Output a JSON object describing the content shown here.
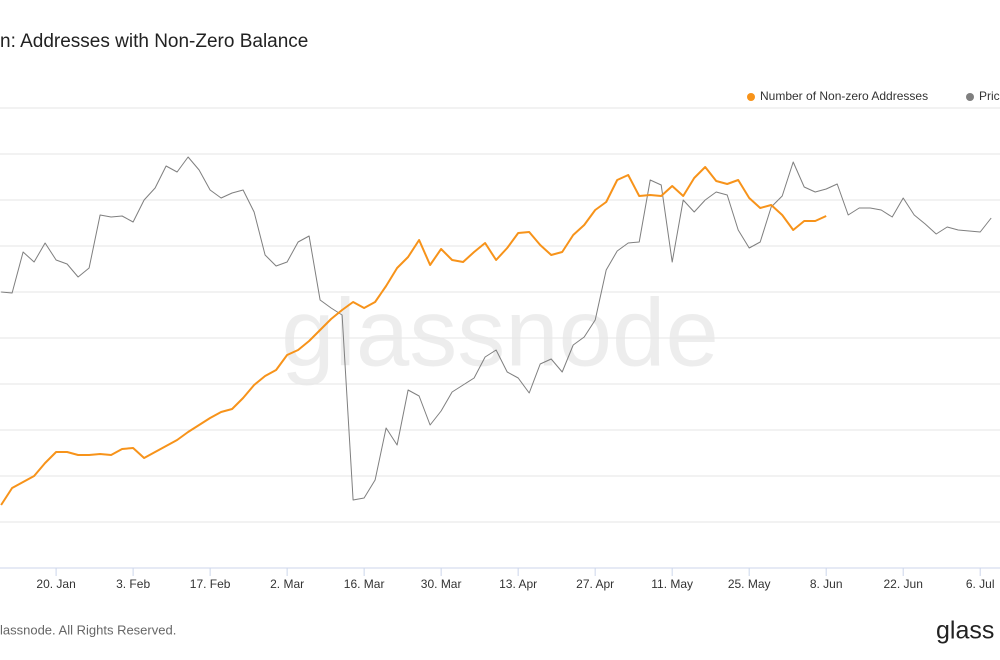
{
  "chart_data": {
    "type": "line",
    "title": "n: Addresses with Non-Zero Balance",
    "footer": "lassnode. All Rights Reserved.",
    "logo": "glass",
    "watermark": "glassnode",
    "xlim": [
      9.8,
      191.6
    ],
    "xticks": [
      {
        "value": 20,
        "label": "20. Jan"
      },
      {
        "value": 34,
        "label": "3. Feb"
      },
      {
        "value": 48,
        "label": "17. Feb"
      },
      {
        "value": 62,
        "label": "2. Mar"
      },
      {
        "value": 76,
        "label": "16. Mar"
      },
      {
        "value": 90,
        "label": "30. Mar"
      },
      {
        "value": 104,
        "label": "13. Apr"
      },
      {
        "value": 118,
        "label": "27. Apr"
      },
      {
        "value": 132,
        "label": "11. May"
      },
      {
        "value": 146,
        "label": "25. May"
      },
      {
        "value": 160,
        "label": "8. Jun"
      },
      {
        "value": 174,
        "label": "22. Jun"
      },
      {
        "value": 188,
        "label": "6. Jul"
      }
    ],
    "ylim": [
      0,
      490
    ],
    "yticks": [
      46,
      92,
      138,
      184,
      230,
      276,
      322,
      368,
      414,
      460
    ],
    "grid": true,
    "legend": "top-right",
    "x": [
      10,
      12,
      14,
      16,
      18,
      20,
      22,
      24,
      26,
      28,
      30,
      32,
      34,
      36,
      38,
      40,
      42,
      44,
      46,
      48,
      50,
      52,
      54,
      56,
      58,
      60,
      62,
      64,
      66,
      68,
      70,
      72,
      74,
      76,
      78,
      80,
      82,
      84,
      86,
      88,
      90,
      92,
      94,
      96,
      98,
      100,
      102,
      104,
      106,
      108,
      110,
      112,
      114,
      116,
      118,
      120,
      122,
      124,
      126,
      128,
      130,
      132,
      134,
      136,
      138,
      140,
      142,
      144,
      146,
      148,
      150,
      152,
      154,
      156,
      158,
      160,
      162,
      164,
      166,
      168,
      170,
      172,
      174,
      176,
      178,
      180,
      182,
      184,
      186,
      188,
      190
    ],
    "series": [
      {
        "name": "Number of Non-zero Addresses",
        "color": "#f7931a",
        "values": [
          63,
          80,
          86,
          92,
          105,
          116,
          116,
          113,
          113,
          114,
          113,
          119,
          120,
          110,
          116,
          122,
          128,
          136,
          143,
          150,
          156,
          159,
          170,
          183,
          192,
          198,
          213,
          218,
          227,
          238,
          249,
          258,
          266,
          260,
          266,
          282,
          300,
          311,
          328,
          303,
          319,
          308,
          306,
          316,
          325,
          308,
          320,
          335,
          336,
          323,
          313,
          316,
          333,
          343,
          358,
          366,
          388,
          393,
          372,
          373,
          372,
          382,
          372,
          390,
          401,
          387,
          384,
          388,
          370,
          360,
          363,
          353,
          338,
          347,
          347,
          352,
          null,
          null,
          null,
          null,
          null,
          null,
          null,
          null,
          null,
          null,
          null,
          null,
          null,
          null,
          null
        ]
      },
      {
        "name": "Pric",
        "color": "#7f7f7f",
        "values": [
          276,
          275,
          316,
          306,
          325,
          308,
          304,
          291,
          300,
          353,
          351,
          352,
          346,
          368,
          380,
          402,
          396,
          411,
          398,
          378,
          370,
          375,
          378,
          356,
          313,
          302,
          306,
          326,
          332,
          268,
          260,
          253,
          68,
          70,
          88,
          140,
          123,
          178,
          172,
          143,
          157,
          176,
          183,
          190,
          211,
          218,
          196,
          190,
          175,
          204,
          209,
          196,
          223,
          231,
          248,
          298,
          317,
          325,
          326,
          388,
          383,
          306,
          368,
          356,
          368,
          376,
          373,
          338,
          320,
          326,
          361,
          372,
          406,
          381,
          376,
          379,
          384,
          353,
          360,
          360,
          358,
          351,
          370,
          353,
          344,
          334,
          341,
          338,
          337,
          336,
          350
        ]
      }
    ]
  }
}
